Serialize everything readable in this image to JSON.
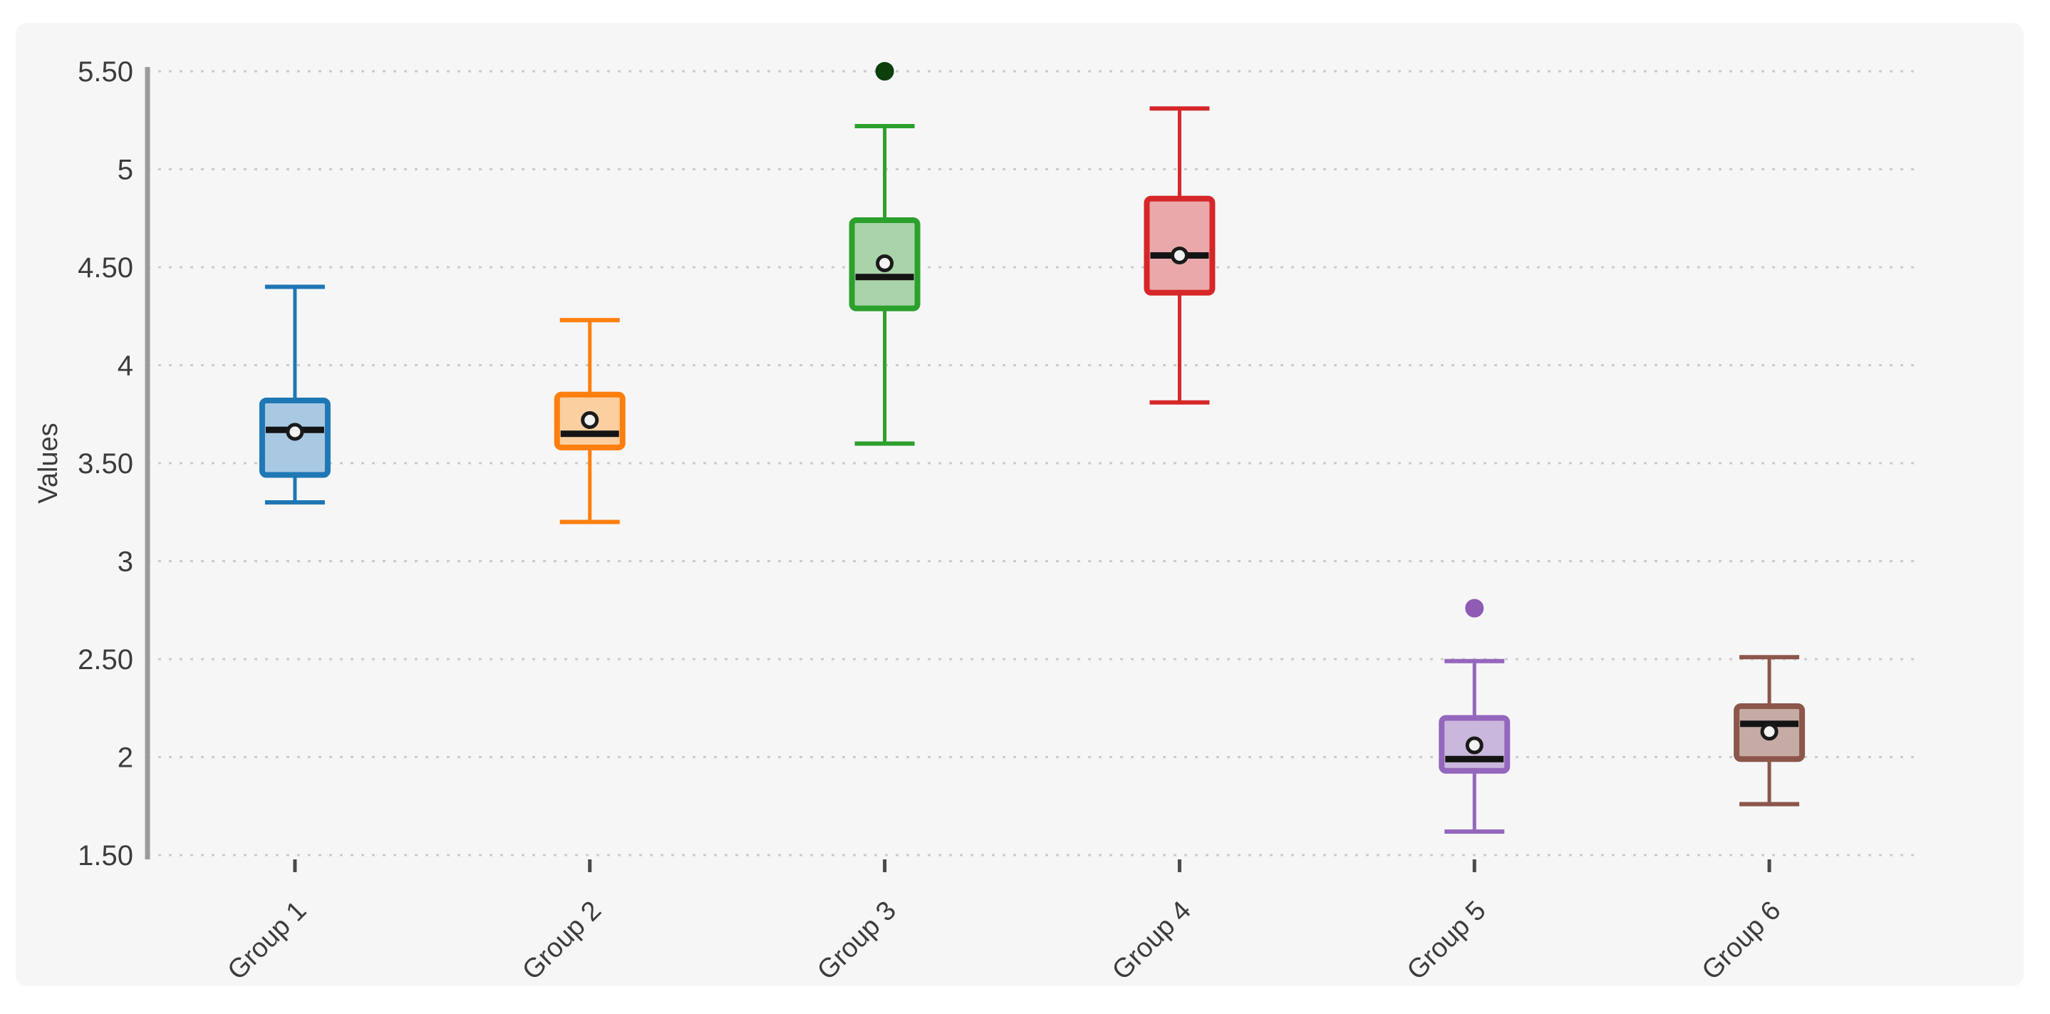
{
  "page": {
    "background": "#ffffff"
  },
  "figure": {
    "background": "#f6f6f7",
    "corner_radius": 16
  },
  "chart_data": {
    "type": "box",
    "title": "",
    "xlabel": "",
    "ylabel": "Values",
    "ylim": [
      1.5,
      5.5
    ],
    "grid": "horizontal-dotted",
    "legend": "none",
    "y_ticks": [
      {
        "value": 5.5,
        "label": "5.50"
      },
      {
        "value": 5.0,
        "label": "5"
      },
      {
        "value": 4.5,
        "label": "4.50"
      },
      {
        "value": 4.0,
        "label": "4"
      },
      {
        "value": 3.5,
        "label": "3.50"
      },
      {
        "value": 3.0,
        "label": "3"
      },
      {
        "value": 2.5,
        "label": "2.50"
      },
      {
        "value": 2.0,
        "label": "2"
      },
      {
        "value": 1.5,
        "label": "1.50"
      }
    ],
    "categories": [
      "Group 1",
      "Group 2",
      "Group 3",
      "Group 4",
      "Group 5",
      "Group 6"
    ],
    "series": [
      {
        "name": "Group 1",
        "stroke": "#1f77b4",
        "fill": "#a9c9e2",
        "low": 3.3,
        "q1": 3.44,
        "median": 3.67,
        "mean": 3.66,
        "q3": 3.82,
        "high": 4.4,
        "outliers": [],
        "outlier_color": "#1f77b4"
      },
      {
        "name": "Group 2",
        "stroke": "#ff7f0e",
        "fill": "#fccfa0",
        "low": 3.2,
        "q1": 3.58,
        "median": 3.65,
        "mean": 3.72,
        "q3": 3.85,
        "high": 4.23,
        "outliers": [],
        "outlier_color": "#ff7f0e"
      },
      {
        "name": "Group 3",
        "stroke": "#2ca02c",
        "fill": "#a9d3a9",
        "low": 3.6,
        "q1": 4.29,
        "median": 4.45,
        "mean": 4.52,
        "q3": 4.74,
        "high": 5.22,
        "outliers": [
          5.5
        ],
        "outlier_color": "#0d3f0d"
      },
      {
        "name": "Group 4",
        "stroke": "#d62728",
        "fill": "#e9a9aa",
        "low": 3.81,
        "q1": 4.37,
        "median": 4.56,
        "mean": 4.56,
        "q3": 4.85,
        "high": 5.31,
        "outliers": [],
        "outlier_color": "#d62728"
      },
      {
        "name": "Group 5",
        "stroke": "#9467bd",
        "fill": "#cab7dd",
        "low": 1.62,
        "q1": 1.93,
        "median": 1.99,
        "mean": 2.06,
        "q3": 2.2,
        "high": 2.49,
        "outliers": [
          2.76
        ],
        "outlier_color": "#8e5bb5"
      },
      {
        "name": "Group 6",
        "stroke": "#8c564b",
        "fill": "#c6aaa4",
        "low": 1.76,
        "q1": 1.99,
        "median": 2.17,
        "mean": 2.13,
        "q3": 2.26,
        "high": 2.51,
        "outliers": [],
        "outlier_color": "#8c564b"
      }
    ],
    "style": {
      "grid_color": "#cbcbcb",
      "axis_line_color": "#9b9b9b",
      "x_tick_color": "#4a4a4a",
      "tick_label_color": "#3c3c3c",
      "axis_title_color": "#3c3c3c",
      "median_color": "#141414",
      "mean_fill": "#f2f2f2",
      "mean_stroke": "#1a1a1a"
    }
  }
}
